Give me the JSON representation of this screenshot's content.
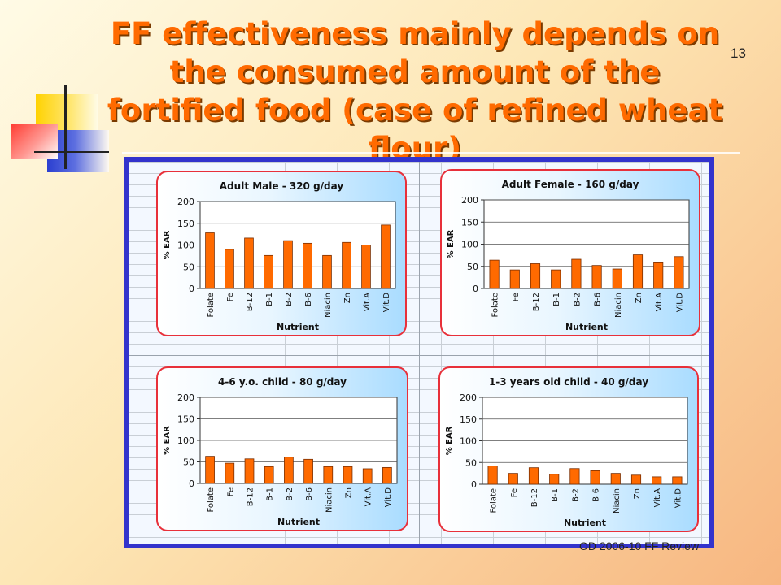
{
  "slide": {
    "title": "FF effectiveness mainly depends on the consumed amount of the fortified food (case of refined wheat flour)",
    "slide_number": "13",
    "footer": "OD 2006-10 FF Review"
  },
  "colors": {
    "title": "#ff6a00",
    "frame_border": "#3333cc",
    "panel_border": "#e8303a",
    "bar_fill": "#ff6a00",
    "bar_stroke": "#7a2e00"
  },
  "chart_data": [
    {
      "type": "bar",
      "title": "Adult Male - 320 g/day",
      "xlabel": "Nutrient",
      "ylabel": "% EAR",
      "ylim": [
        0,
        200
      ],
      "yticks": [
        0,
        50,
        100,
        150,
        200
      ],
      "categories": [
        "Folate",
        "Fe",
        "B-12",
        "B-1",
        "B-2",
        "B-6",
        "Niacin",
        "Zn",
        "Vit.A",
        "Vit.D"
      ],
      "values": [
        128,
        90,
        116,
        76,
        110,
        104,
        76,
        106,
        100,
        146
      ],
      "grid": true
    },
    {
      "type": "bar",
      "title": "Adult Female - 160 g/day",
      "xlabel": "Nutrient",
      "ylabel": "% EAR",
      "ylim": [
        0,
        200
      ],
      "yticks": [
        0,
        50,
        100,
        150,
        200
      ],
      "categories": [
        "Folate",
        "Fe",
        "B-12",
        "B-1",
        "B-2",
        "B-6",
        "Niacin",
        "Zn",
        "Vit.A",
        "Vit.D"
      ],
      "values": [
        64,
        42,
        56,
        42,
        66,
        52,
        44,
        76,
        58,
        72
      ],
      "grid": true
    },
    {
      "type": "bar",
      "title": "4-6 y.o. child - 80 g/day",
      "xlabel": "Nutrient",
      "ylabel": "% EAR",
      "ylim": [
        0,
        200
      ],
      "yticks": [
        0,
        50,
        100,
        150,
        200
      ],
      "categories": [
        "Folate",
        "Fe",
        "B-12",
        "B-1",
        "B-2",
        "B-6",
        "Niacin",
        "Zn",
        "Vit.A",
        "Vit.D"
      ],
      "values": [
        63,
        47,
        57,
        39,
        61,
        56,
        39,
        39,
        34,
        37
      ],
      "grid": true
    },
    {
      "type": "bar",
      "title": "1-3 years old child - 40 g/day",
      "xlabel": "Nutrient",
      "ylabel": "% EAR",
      "ylim": [
        0,
        200
      ],
      "yticks": [
        0,
        50,
        100,
        150,
        200
      ],
      "categories": [
        "Folate",
        "Fe",
        "B-12",
        "B-1",
        "B-2",
        "B-6",
        "Niacin",
        "Zn",
        "Vit.A",
        "Vit.D"
      ],
      "values": [
        42,
        25,
        38,
        23,
        36,
        31,
        25,
        21,
        17,
        17
      ],
      "grid": true
    }
  ]
}
